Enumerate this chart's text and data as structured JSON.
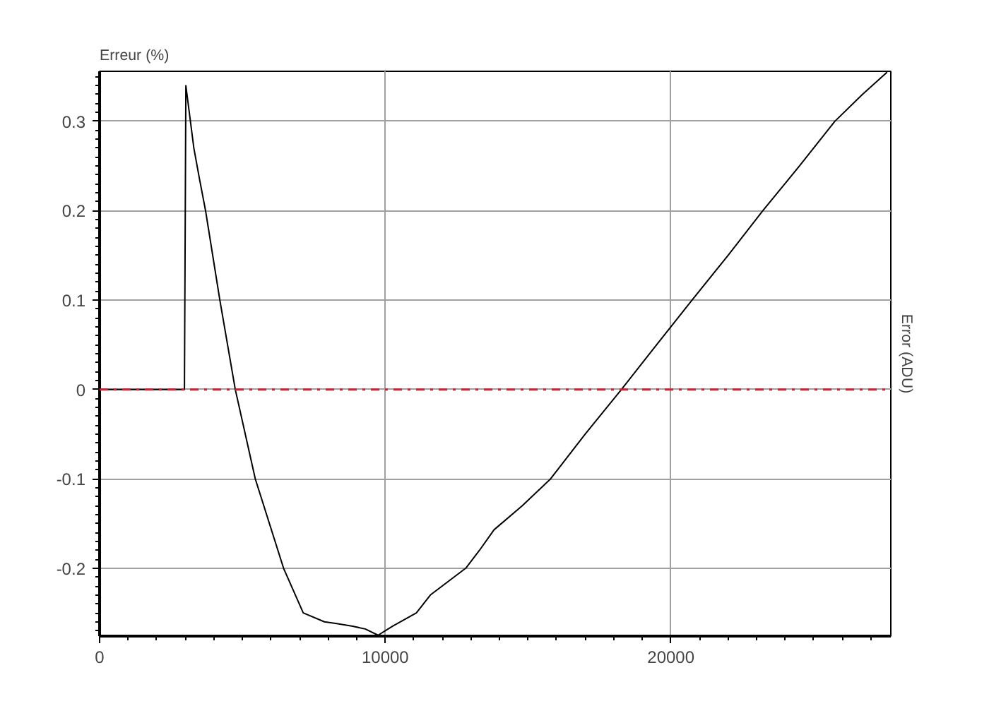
{
  "chart_data": {
    "type": "line",
    "ylabel": "Erreur (%)",
    "y2label": "Error (ADU)",
    "x": [
      0,
      2970,
      3020,
      3300,
      3500,
      3710,
      4210,
      4750,
      5450,
      6440,
      7130,
      7870,
      8300,
      8860,
      9300,
      9750,
      10250,
      11090,
      11580,
      12200,
      12820,
      13300,
      13810,
      14800,
      15790,
      17000,
      18270,
      19500,
      20740,
      22000,
      23220,
      24500,
      25740,
      26700,
      27570
    ],
    "series": [
      {
        "color": "#000000",
        "values": [
          0,
          0,
          0.34,
          0.27,
          0.235,
          0.2,
          0.1,
          0,
          -0.1,
          -0.2,
          -0.25,
          -0.26,
          -0.262,
          -0.265,
          -0.268,
          -0.275,
          -0.265,
          -0.25,
          -0.23,
          -0.215,
          -0.2,
          -0.18,
          -0.157,
          -0.13,
          -0.1,
          -0.05,
          0,
          0.05,
          0.1,
          0.15,
          0.2,
          0.25,
          0.3,
          0.33,
          0.355
        ]
      }
    ],
    "xlim": [
      0,
      27700
    ],
    "ylim": [
      -0.276,
      0.356
    ],
    "xticks": [
      0,
      10000,
      20000
    ],
    "yticks": [
      -0.2,
      -0.1,
      0,
      0.1,
      0.2,
      0.3
    ],
    "ref_lines": [
      {
        "axis": "y",
        "value": 0,
        "color": "#cc2233",
        "line_style": "dashdot"
      }
    ],
    "grid": true,
    "marker": "none",
    "line_style": "solid"
  }
}
